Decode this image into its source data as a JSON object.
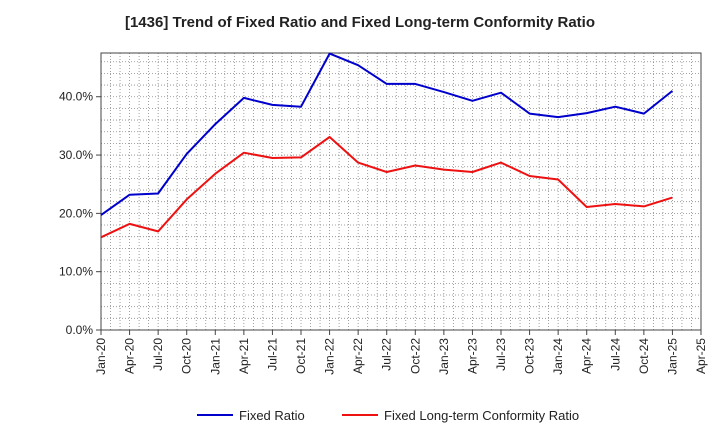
{
  "chart_data": {
    "type": "line",
    "title": "[1436]  Trend of Fixed Ratio and Fixed Long-term Conformity Ratio",
    "xlabel": "",
    "ylabel": "",
    "x": [
      "Jan-20",
      "Apr-20",
      "Jul-20",
      "Oct-20",
      "Jan-21",
      "Apr-21",
      "Jul-21",
      "Oct-21",
      "Jan-22",
      "Apr-22",
      "Jul-22",
      "Oct-22",
      "Jan-23",
      "Apr-23",
      "Jul-23",
      "Oct-23",
      "Jan-24",
      "Apr-24",
      "Jul-24",
      "Oct-24",
      "Jan-25",
      "Apr-25"
    ],
    "ylim": [
      0,
      47.5
    ],
    "yticks": [
      0,
      10,
      20,
      30,
      40
    ],
    "ytick_labels": [
      "0.0%",
      "10.0%",
      "20.0%",
      "30.0%",
      "40.0%"
    ],
    "grid": true,
    "legend": "bottom",
    "series": [
      {
        "name": "Fixed Ratio",
        "color": "#0000cc",
        "values": [
          19.7,
          23.2,
          23.4,
          30.2,
          35.3,
          39.8,
          38.6,
          38.3,
          47.4,
          45.4,
          42.2,
          42.2,
          40.8,
          39.3,
          40.7,
          37.1,
          36.5,
          37.2,
          38.3,
          37.1,
          41.0,
          null
        ]
      },
      {
        "name": "Fixed Long-term Conformity Ratio",
        "color": "#ee1111",
        "values": [
          15.9,
          18.2,
          16.9,
          22.4,
          26.8,
          30.4,
          29.5,
          29.6,
          33.1,
          28.7,
          27.1,
          28.2,
          27.5,
          27.1,
          28.7,
          26.4,
          25.8,
          21.1,
          21.6,
          21.2,
          22.7,
          null
        ]
      }
    ]
  }
}
